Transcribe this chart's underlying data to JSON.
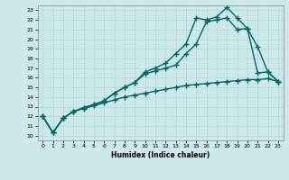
{
  "xlabel": "Humidex (Indice chaleur)",
  "background_color": "#cce8e8",
  "line_color": "#006666",
  "xlim": [
    -0.5,
    23.5
  ],
  "ylim": [
    9.5,
    23.5
  ],
  "xticks": [
    0,
    1,
    2,
    3,
    4,
    5,
    6,
    7,
    8,
    9,
    10,
    11,
    12,
    13,
    14,
    15,
    16,
    17,
    18,
    19,
    20,
    21,
    22,
    23
  ],
  "yticks": [
    10,
    11,
    12,
    13,
    14,
    15,
    16,
    17,
    18,
    19,
    20,
    21,
    22,
    23
  ],
  "line1_x": [
    0,
    1,
    2,
    3,
    4,
    5,
    6,
    7,
    8,
    9,
    10,
    11,
    12,
    13,
    14,
    15,
    16,
    17,
    18,
    19,
    20,
    21,
    22,
    23
  ],
  "line1_y": [
    12.0,
    10.3,
    11.8,
    12.5,
    12.8,
    13.1,
    13.4,
    13.7,
    14.0,
    14.2,
    14.4,
    14.6,
    14.8,
    15.0,
    15.2,
    15.3,
    15.4,
    15.5,
    15.6,
    15.7,
    15.8,
    15.8,
    15.9,
    15.6
  ],
  "line2_x": [
    0,
    1,
    2,
    3,
    4,
    5,
    6,
    7,
    8,
    9,
    10,
    11,
    12,
    13,
    14,
    15,
    16,
    17,
    18,
    19,
    20,
    21,
    22,
    23
  ],
  "line2_y": [
    12.0,
    10.3,
    11.8,
    12.5,
    12.9,
    13.2,
    13.6,
    14.4,
    15.0,
    15.5,
    16.4,
    16.7,
    17.0,
    17.3,
    18.5,
    19.5,
    21.8,
    22.0,
    22.2,
    21.0,
    21.1,
    19.2,
    16.6,
    15.6
  ],
  "line3_x": [
    0,
    1,
    2,
    3,
    4,
    5,
    6,
    7,
    8,
    9,
    10,
    11,
    12,
    13,
    14,
    15,
    16,
    17,
    18,
    19,
    20,
    21,
    22,
    23
  ],
  "line3_y": [
    12.0,
    10.3,
    11.8,
    12.5,
    12.9,
    13.2,
    13.6,
    14.4,
    15.0,
    15.5,
    16.6,
    17.0,
    17.5,
    18.5,
    19.5,
    22.2,
    22.0,
    22.3,
    23.3,
    22.2,
    21.1,
    16.5,
    16.6,
    15.6
  ],
  "marker": "+",
  "markersize": 4,
  "linewidth": 1.0
}
